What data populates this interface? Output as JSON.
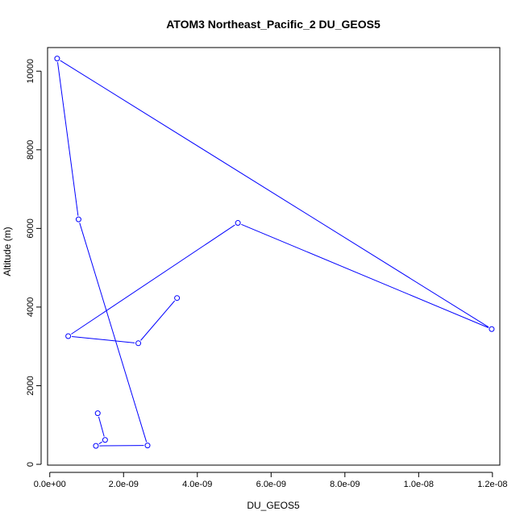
{
  "chart_data": {
    "type": "line",
    "title": "ATOM3 Northeast_Pacific_2 DU_GEOS5",
    "xlabel": "DU_GEOS5",
    "ylabel": "Altitude (m)",
    "xlim": [
      -6e-11,
      1.22e-08
    ],
    "ylim": [
      -20,
      10600
    ],
    "x_ticks": [
      0,
      2e-09,
      4e-09,
      6e-09,
      8e-09,
      1e-08,
      1.2e-08
    ],
    "x_tick_labels": [
      "0.0e+00",
      "2.0e-09",
      "4.0e-09",
      "6.0e-09",
      "8.0e-09",
      "1.0e-08",
      "1.2e-08"
    ],
    "y_ticks": [
      0,
      2000,
      4000,
      6000,
      8000,
      10000
    ],
    "y_tick_labels": [
      "0",
      "2000",
      "4000",
      "6000",
      "8000",
      "10000"
    ],
    "grid": false,
    "legend": "none",
    "series": [
      {
        "color": "#0000ff",
        "marker": "open-circle",
        "x": [
          1.3e-09,
          1.5e-09,
          1.25e-09,
          2.65e-09,
          7.8e-10,
          2e-10,
          1.198e-08,
          5.1e-09,
          5e-10,
          2.4e-09,
          3.45e-09
        ],
        "y": [
          1300,
          620,
          470,
          480,
          6230,
          10320,
          3440,
          6140,
          3260,
          3080,
          4230
        ]
      }
    ]
  }
}
